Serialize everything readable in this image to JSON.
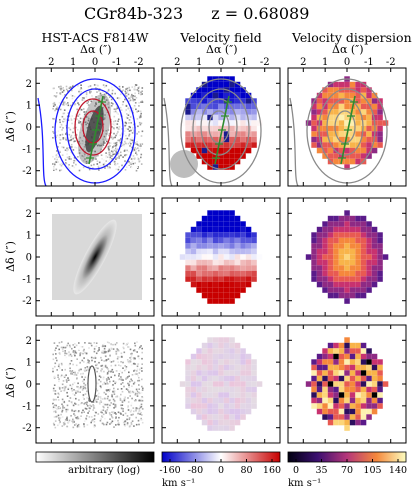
{
  "header": {
    "object": "CGr84b-323",
    "redshift": "z = 0.68089"
  },
  "columns": [
    {
      "title": "HST-ACS F814W"
    },
    {
      "title": "Velocity field"
    },
    {
      "title": "Velocity dispersion"
    }
  ],
  "axes": {
    "x_label": "Δα (″)",
    "y_label": "Δδ (″)",
    "x_ticks": [
      "2",
      "1",
      "0",
      "-1",
      "-2"
    ],
    "y_ticks": [
      "2",
      "1",
      "0",
      "-1",
      "-2"
    ]
  },
  "colorbars": [
    {
      "label": "arbitrary (log)",
      "ticks": [],
      "colors": [
        "#ffffff",
        "#000000"
      ]
    },
    {
      "label": "km s⁻¹",
      "ticks": [
        "-160",
        "-80",
        "0",
        "80",
        "160"
      ],
      "colors": [
        "#0000cc",
        "#ffffff",
        "#cc0000"
      ]
    },
    {
      "label": "km s⁻¹",
      "ticks": [
        "0",
        "35",
        "70",
        "105",
        "140"
      ],
      "colors": [
        "#000010",
        "#3b0f70",
        "#b5367a",
        "#f5883c",
        "#fcfdbf"
      ]
    }
  ],
  "colors": {
    "contour_outer": "#1a1aff",
    "contour_inner": "#c0162c",
    "contour_gray": "#8a8a8a",
    "axis_line": "#2e8b2e",
    "psf_disk": "#bdbdbd"
  }
}
